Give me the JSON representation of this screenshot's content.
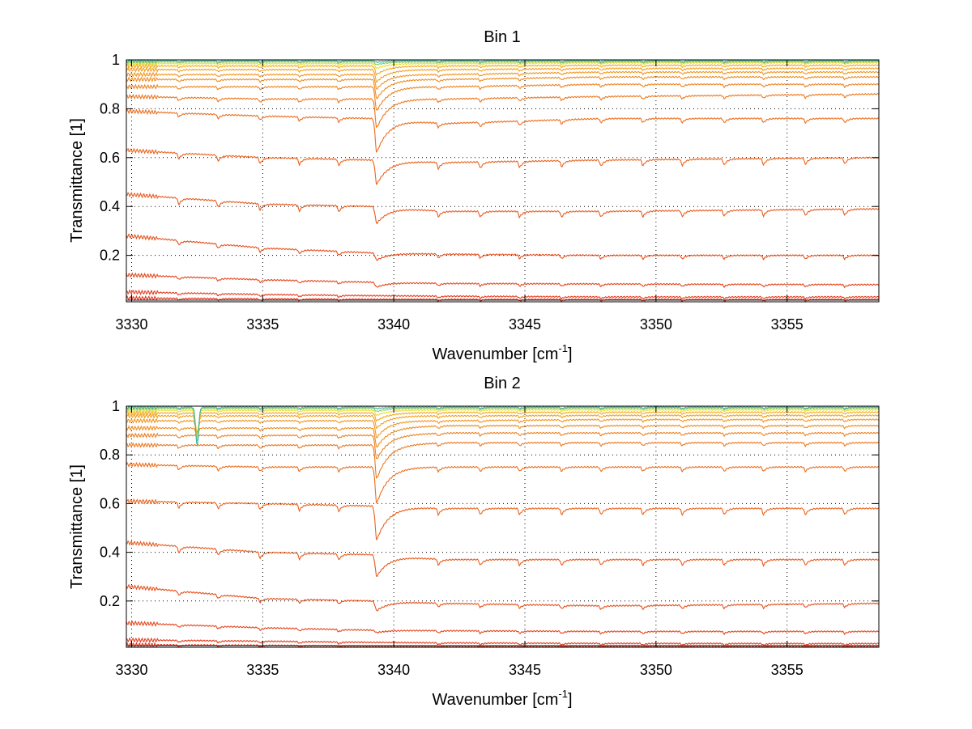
{
  "chart_data": [
    {
      "type": "line",
      "title": "Bin 1",
      "xlabel": "Wavenumber [cm",
      "xlabel_sup": "-1",
      "xlabel_end": "]",
      "ylabel": "Transmittance [1]",
      "xlim": [
        3329.8,
        3358.5
      ],
      "ylim": [
        0.01,
        1.0
      ],
      "xticks": [
        3330,
        3335,
        3340,
        3345,
        3350,
        3355
      ],
      "xtick_labels": [
        "3330",
        "3335",
        "3340",
        "3345",
        "3350",
        "3355"
      ],
      "yticks": [
        0.2,
        0.4,
        0.6,
        0.8,
        1.0
      ],
      "ytick_labels": [
        "0.2",
        "0.4",
        "0.6",
        "0.8",
        "1"
      ],
      "grid": true,
      "x": [
        3329.8,
        3335,
        3339.2,
        3339.4,
        3342,
        3348,
        3358.5
      ],
      "main_absorption_wavenumber": 3339.35,
      "secondary_absorption_wavenumbers": [
        3331.8,
        3333.3,
        3334.9,
        3336.4,
        3337.9,
        3341.7,
        3343.3,
        3344.8,
        3346.4,
        3347.9,
        3349.5,
        3351.0,
        3352.6,
        3354.1,
        3355.7,
        3357.2
      ],
      "series": [
        {
          "values": [
            0.025,
            0.022,
            0.02,
            0.02,
            0.02,
            0.02,
            0.02
          ]
        },
        {
          "values": [
            0.05,
            0.04,
            0.035,
            0.035,
            0.033,
            0.03,
            0.03
          ]
        },
        {
          "values": [
            0.12,
            0.1,
            0.09,
            0.07,
            0.085,
            0.083,
            0.08
          ]
        },
        {
          "values": [
            0.28,
            0.23,
            0.21,
            0.18,
            0.205,
            0.2,
            0.2
          ]
        },
        {
          "values": [
            0.45,
            0.41,
            0.4,
            0.33,
            0.38,
            0.38,
            0.39
          ]
        },
        {
          "values": [
            0.63,
            0.6,
            0.59,
            0.49,
            0.58,
            0.59,
            0.6
          ]
        },
        {
          "values": [
            0.79,
            0.77,
            0.76,
            0.62,
            0.74,
            0.76,
            0.76
          ]
        },
        {
          "values": [
            0.85,
            0.84,
            0.84,
            0.72,
            0.84,
            0.85,
            0.86
          ]
        },
        {
          "values": [
            0.89,
            0.89,
            0.89,
            0.79,
            0.89,
            0.9,
            0.9
          ]
        },
        {
          "values": [
            0.92,
            0.92,
            0.92,
            0.84,
            0.92,
            0.93,
            0.93
          ]
        },
        {
          "values": [
            0.94,
            0.94,
            0.94,
            0.88,
            0.94,
            0.95,
            0.95
          ]
        },
        {
          "values": [
            0.96,
            0.96,
            0.96,
            0.91,
            0.96,
            0.965,
            0.965
          ]
        },
        {
          "values": [
            0.975,
            0.975,
            0.975,
            0.94,
            0.975,
            0.978,
            0.978
          ]
        },
        {
          "values": [
            0.985,
            0.985,
            0.985,
            0.965,
            0.985,
            0.988,
            0.988
          ]
        },
        {
          "values": [
            0.992,
            0.992,
            0.992,
            0.98,
            0.992,
            0.993,
            0.993
          ]
        },
        {
          "values": [
            0.997,
            0.997,
            0.997,
            0.99,
            0.997,
            0.997,
            0.997
          ]
        }
      ]
    },
    {
      "type": "line",
      "title": "Bin 2",
      "xlabel": "Wavenumber [cm",
      "xlabel_sup": "-1",
      "xlabel_end": "]",
      "ylabel": "Transmittance [1]",
      "xlim": [
        3329.8,
        3358.5
      ],
      "ylim": [
        0.01,
        1.0
      ],
      "xticks": [
        3330,
        3335,
        3340,
        3345,
        3350,
        3355
      ],
      "xtick_labels": [
        "3330",
        "3335",
        "3340",
        "3345",
        "3350",
        "3355"
      ],
      "yticks": [
        0.2,
        0.4,
        0.6,
        0.8,
        1.0
      ],
      "ytick_labels": [
        "0.2",
        "0.4",
        "0.6",
        "0.8",
        "1"
      ],
      "grid": true,
      "x": [
        3329.8,
        3335,
        3339.2,
        3339.4,
        3342,
        3348,
        3358.5
      ],
      "main_absorption_wavenumber": 3339.35,
      "extra_absorption_wavenumber": 3332.5,
      "secondary_absorption_wavenumbers": [
        3331.8,
        3333.3,
        3334.9,
        3336.4,
        3337.9,
        3341.7,
        3343.3,
        3344.8,
        3346.4,
        3347.9,
        3349.5,
        3351.0,
        3352.6,
        3354.1,
        3355.7,
        3357.2
      ],
      "series": [
        {
          "values": [
            0.02,
            0.018,
            0.015,
            0.015,
            0.015,
            0.015,
            0.015
          ]
        },
        {
          "values": [
            0.04,
            0.035,
            0.03,
            0.03,
            0.028,
            0.026,
            0.025
          ]
        },
        {
          "values": [
            0.11,
            0.09,
            0.08,
            0.07,
            0.078,
            0.075,
            0.075
          ]
        },
        {
          "values": [
            0.26,
            0.21,
            0.2,
            0.16,
            0.19,
            0.18,
            0.19
          ]
        },
        {
          "values": [
            0.44,
            0.4,
            0.39,
            0.3,
            0.37,
            0.37,
            0.37
          ]
        },
        {
          "values": [
            0.61,
            0.6,
            0.59,
            0.45,
            0.58,
            0.58,
            0.58
          ]
        },
        {
          "values": [
            0.76,
            0.75,
            0.75,
            0.6,
            0.75,
            0.75,
            0.75
          ]
        },
        {
          "values": [
            0.84,
            0.84,
            0.84,
            0.7,
            0.85,
            0.85,
            0.85
          ]
        },
        {
          "values": [
            0.88,
            0.88,
            0.88,
            0.78,
            0.89,
            0.89,
            0.89
          ]
        },
        {
          "values": [
            0.91,
            0.91,
            0.91,
            0.83,
            0.92,
            0.92,
            0.92
          ]
        },
        {
          "values": [
            0.94,
            0.94,
            0.94,
            0.87,
            0.94,
            0.945,
            0.945
          ]
        },
        {
          "values": [
            0.96,
            0.96,
            0.96,
            0.91,
            0.96,
            0.962,
            0.962
          ]
        },
        {
          "values": [
            0.972,
            0.972,
            0.972,
            0.94,
            0.974,
            0.975,
            0.975
          ]
        },
        {
          "values": [
            0.983,
            0.983,
            0.983,
            0.962,
            0.985,
            0.985,
            0.985
          ]
        },
        {
          "values": [
            0.991,
            0.991,
            0.991,
            0.978,
            0.992,
            0.992,
            0.992
          ]
        },
        {
          "values": [
            0.996,
            0.996,
            0.996,
            0.99,
            0.996,
            0.996,
            0.996
          ]
        }
      ]
    }
  ],
  "colors": {
    "low_transmittance": "#e2331c",
    "high_transmittance": "#fde725",
    "top_trace": "#3cb4a0",
    "grid": "#000000",
    "axis": "#000000"
  }
}
